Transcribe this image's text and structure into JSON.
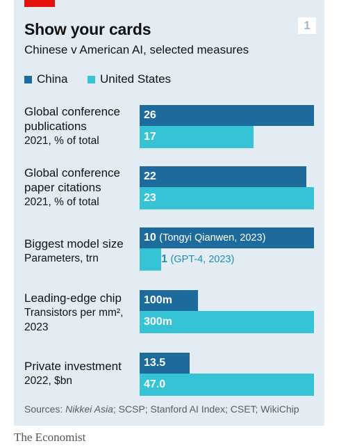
{
  "colors": {
    "china": "#1c6b9c",
    "us": "#37c3d6",
    "panel": "#e3ebf3",
    "accent_red": "#e3120b"
  },
  "chart_number": "1",
  "chart_data": {
    "type": "bar",
    "title": "Show your cards",
    "subtitle": "Chinese v American AI, selected measures",
    "legend": [
      {
        "name": "China",
        "color": "#1c6b9c"
      },
      {
        "name": "United States",
        "color": "#37c3d6"
      }
    ],
    "groups": [
      {
        "label": "Global conference publications",
        "sublabel": "2021, % of total",
        "max": 26,
        "bars": [
          {
            "series": "China",
            "value": 26,
            "text": "26",
            "note": ""
          },
          {
            "series": "United States",
            "value": 17,
            "text": "17",
            "note": ""
          }
        ]
      },
      {
        "label": "Global conference paper citations",
        "sublabel": "2021, % of total",
        "max": 23,
        "bars": [
          {
            "series": "China",
            "value": 22,
            "text": "22",
            "note": ""
          },
          {
            "series": "United States",
            "value": 23,
            "text": "23",
            "note": ""
          }
        ]
      },
      {
        "label": "Biggest model size",
        "sublabel": "Parameters, trn",
        "max": 10,
        "bars": [
          {
            "series": "China",
            "value": 10,
            "text": "10",
            "note": "(Tongyi Qianwen, 2023)"
          },
          {
            "series": "United States",
            "value": 1,
            "text": "1",
            "note": "(GPT-4, 2023)"
          }
        ]
      },
      {
        "label": "Leading-edge chip",
        "sublabel": "Transistors per mm², 2023",
        "max": 300,
        "bars": [
          {
            "series": "China",
            "value": 100,
            "text": "100m",
            "note": ""
          },
          {
            "series": "United States",
            "value": 300,
            "text": "300m",
            "note": ""
          }
        ]
      },
      {
        "label": "Private investment",
        "sublabel": "2022, $bn",
        "max": 47.0,
        "bars": [
          {
            "series": "China",
            "value": 13.5,
            "text": "13.5",
            "note": ""
          },
          {
            "series": "United States",
            "value": 47.0,
            "text": "47.0",
            "note": ""
          }
        ]
      }
    ]
  },
  "source": {
    "prefix": "Sources: ",
    "italic": "Nikkei Asia",
    "rest": "; SCSP; Stanford AI Index; CSET; WikiChip"
  },
  "brand": "The Economist"
}
